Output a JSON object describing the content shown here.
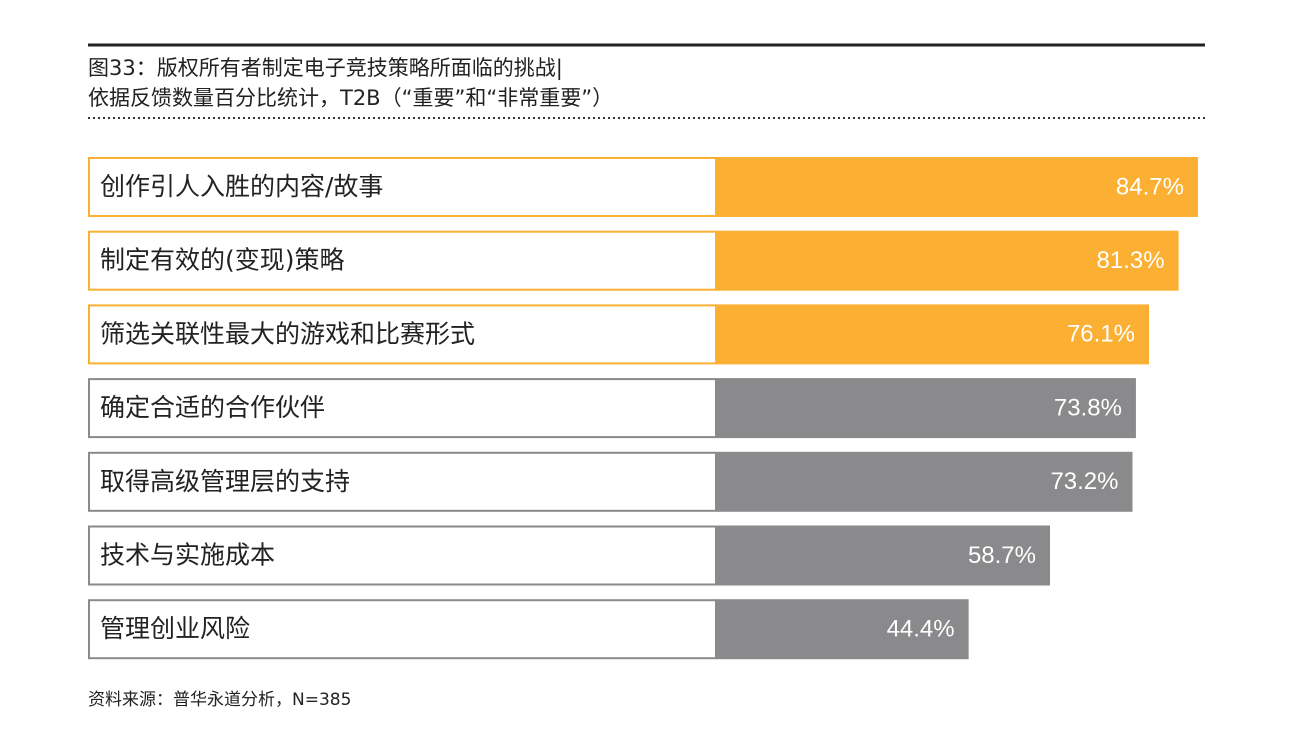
{
  "chart_data": {
    "type": "bar",
    "title": "图33：版权所有者制定电子竞技策略所面临的挑战|",
    "subtitle": "依据反馈数量百分比统计，T2B（“重要”和“非常重要”）",
    "categories": [
      "创作引人入胜的内容/故事",
      "制定有效的(变现)策略",
      "筛选关联性最大的游戏和比赛形式",
      "确定合适的合作伙伴",
      "取得高级管理层的支持",
      "技术与实施成本",
      "管理创业风险"
    ],
    "values": [
      84.7,
      81.3,
      76.1,
      73.8,
      73.2,
      58.7,
      44.4
    ],
    "value_labels": [
      "84.7%",
      "81.3%",
      "76.1%",
      "73.8%",
      "73.2%",
      "58.7%",
      "44.4%"
    ],
    "colors": [
      "#fbb034",
      "#fbb034",
      "#fbb034",
      "#8a898b",
      "#8a898b",
      "#8a898b",
      "#8a898b"
    ],
    "source": "资料来源：普华永道分析，N=385"
  }
}
